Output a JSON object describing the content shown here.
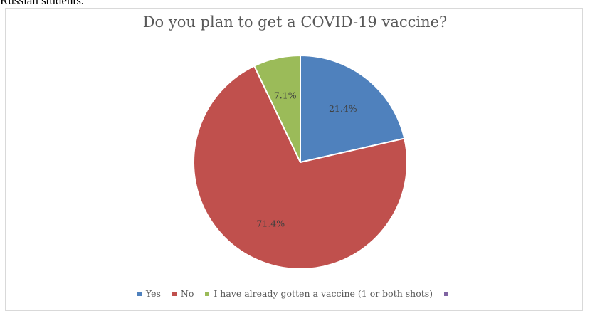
{
  "header_text": "Russian students.",
  "chart_data": {
    "type": "pie",
    "title": "Do you plan to get a COVID-19 vaccine?",
    "categories": [
      "Yes",
      "No",
      "I have already gotten a vaccine (1 or both shots)",
      ""
    ],
    "values": [
      21.4,
      71.4,
      7.1,
      0
    ],
    "labels": [
      "21.4%",
      "71.4%",
      "7.1%",
      ""
    ],
    "colors": [
      "#4f81bd",
      "#c0504d",
      "#9bbb59",
      "#8064a2"
    ],
    "legend": "bottom",
    "start_angle_deg": 0,
    "direction": "clockwise"
  }
}
